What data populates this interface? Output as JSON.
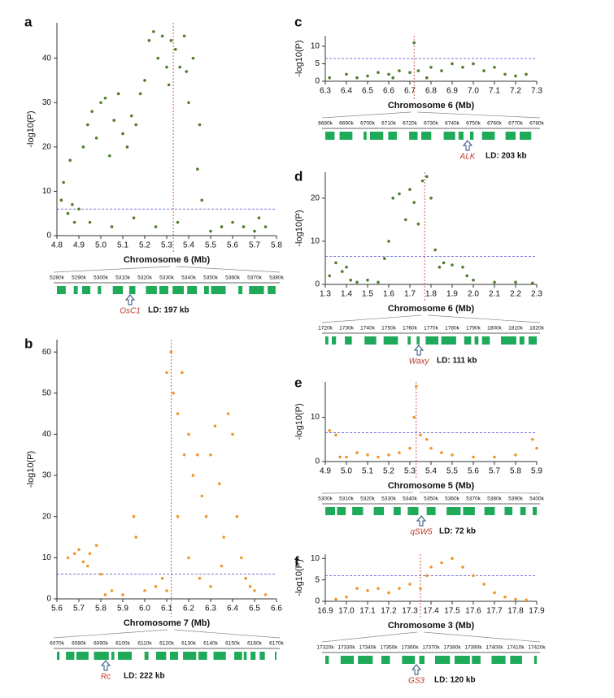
{
  "chart_data": [
    {
      "type": "scatter",
      "panel": "a",
      "color": "#4f7d2b",
      "xlabel": "Chromosome 6 (Mb)",
      "ylabel": "-log10(P)",
      "xlim": [
        4.8,
        5.8
      ],
      "xticks": [
        4.8,
        4.9,
        {
          "value": 5,
          "label": "5.0"
        },
        5.1,
        5.2,
        5.3,
        5.4,
        5.5,
        5.6,
        5.7,
        5.8
      ],
      "ylim": [
        0,
        48
      ],
      "yticks": [
        0,
        10,
        20,
        30,
        40
      ],
      "hline": 6,
      "vline": 5.33,
      "x": [
        4.82,
        4.83,
        4.85,
        4.86,
        4.88,
        4.9,
        4.92,
        4.94,
        4.96,
        4.98,
        5.0,
        5.02,
        5.04,
        5.06,
        5.08,
        5.1,
        5.12,
        5.14,
        5.16,
        5.18,
        5.2,
        5.22,
        5.24,
        5.26,
        5.28,
        5.3,
        5.32,
        5.34,
        5.36,
        5.38,
        5.4,
        5.42,
        5.44,
        5.45,
        5.46,
        4.95,
        5.05,
        5.15,
        5.25,
        5.35,
        5.5,
        5.55,
        5.6,
        5.65,
        5.7,
        5.72,
        5.75,
        4.87,
        5.31,
        5.39
      ],
      "y": [
        8,
        12,
        5,
        17,
        3,
        6,
        20,
        25,
        28,
        22,
        30,
        31,
        18,
        26,
        32,
        23,
        20,
        27,
        25,
        32,
        35,
        44,
        46,
        40,
        45,
        38,
        44,
        42,
        38,
        45,
        30,
        40,
        15,
        25,
        8,
        3,
        2,
        4,
        2,
        3,
        1,
        2,
        3,
        2,
        1,
        4,
        2,
        7,
        34,
        37
      ],
      "track": {
        "ticks": [
          "5280k",
          "5290k",
          "5300k",
          "5310k",
          "5320k",
          "5330k",
          "5340k",
          "5350k",
          "5360k",
          "5370k",
          "5380k"
        ],
        "gene": "OsC1",
        "ld": "LD: 197 kb"
      }
    },
    {
      "type": "scatter",
      "panel": "b",
      "color": "#f0962e",
      "xlabel": "Chromosome 7 (Mb)",
      "ylabel": "-log10(P)",
      "xlim": [
        5.6,
        6.6
      ],
      "xticks": [
        5.6,
        5.7,
        5.8,
        5.9,
        {
          "value": 6,
          "label": "6.0"
        },
        6.1,
        6.2,
        6.3,
        6.4,
        6.5,
        6.6
      ],
      "ylim": [
        0,
        63
      ],
      "yticks": [
        0,
        10,
        20,
        30,
        40,
        50,
        60
      ],
      "hline": 6,
      "vline": 6.12,
      "x": [
        5.65,
        5.68,
        5.7,
        5.72,
        5.75,
        5.78,
        5.8,
        5.82,
        5.85,
        5.9,
        5.95,
        5.96,
        6.0,
        6.05,
        6.08,
        6.1,
        6.12,
        6.13,
        6.15,
        6.17,
        6.2,
        6.22,
        6.24,
        6.26,
        6.28,
        6.3,
        6.32,
        6.34,
        6.36,
        6.38,
        6.4,
        6.42,
        6.44,
        6.46,
        6.48,
        6.5,
        6.55,
        6.2,
        6.25,
        6.3,
        6.35,
        6.1,
        6.15,
        6.18,
        5.74
      ],
      "y": [
        10,
        11,
        12,
        9,
        11,
        13,
        6,
        1,
        2,
        1,
        20,
        15,
        2,
        3,
        5,
        55,
        60,
        50,
        45,
        55,
        40,
        30,
        35,
        25,
        20,
        35,
        42,
        28,
        15,
        45,
        40,
        20,
        10,
        5,
        3,
        2,
        1,
        10,
        5,
        3,
        8,
        2,
        20,
        35,
        8
      ],
      "track": {
        "ticks": [
          "6070k",
          "6080k",
          "6090k",
          "6100k",
          "6110k",
          "6120k",
          "6130k",
          "6140k",
          "6150k",
          "6160k",
          "6170k"
        ],
        "gene": "Rc",
        "ld": "LD: 222 kb"
      }
    },
    {
      "type": "scatter",
      "panel": "c",
      "color": "#4f7d2b",
      "xlabel": "Chromosome 6 (Mb)",
      "ylabel": "-log10(P)",
      "xlim": [
        6.3,
        7.3
      ],
      "xticks": [
        6.3,
        6.4,
        6.5,
        6.6,
        6.7,
        6.8,
        6.9,
        {
          "value": 7,
          "label": "7.0"
        },
        7.1,
        7.2,
        7.3
      ],
      "ylim": [
        0,
        13
      ],
      "yticks": [
        0,
        5,
        10
      ],
      "hline": 6.5,
      "vline": 6.72,
      "x": [
        6.32,
        6.4,
        6.5,
        6.6,
        6.65,
        6.7,
        6.72,
        6.74,
        6.78,
        6.8,
        6.85,
        6.9,
        6.95,
        7.0,
        7.05,
        7.1,
        7.15,
        7.2,
        7.25,
        6.45,
        6.55,
        6.62
      ],
      "y": [
        1,
        2,
        1.5,
        2,
        3,
        2.5,
        11,
        3,
        1,
        4,
        3,
        5,
        4,
        5,
        3,
        4,
        2,
        1.5,
        2,
        1,
        2.5,
        1
      ],
      "track": {
        "ticks": [
          "6680k",
          "6690k",
          "6700k",
          "6710k",
          "6720k",
          "6730k",
          "6740k",
          "6750k",
          "6760k",
          "6770k",
          "6780k"
        ],
        "gene": "ALK",
        "ld": "LD: 203 kb"
      }
    },
    {
      "type": "scatter",
      "panel": "d",
      "color": "#4f7d2b",
      "xlabel": "Chromosome 6 (Mb)",
      "ylabel": "-log10(P)",
      "xlim": [
        1.3,
        2.3
      ],
      "xticks": [
        1.3,
        1.4,
        1.5,
        1.6,
        1.7,
        1.8,
        1.9,
        {
          "value": 2,
          "label": "2.0"
        },
        2.1,
        2.2,
        2.3
      ],
      "ylim": [
        0,
        26
      ],
      "yticks": [
        0,
        10,
        20
      ],
      "hline": 6.5,
      "vline": 1.77,
      "x": [
        1.32,
        1.35,
        1.38,
        1.4,
        1.42,
        1.45,
        1.5,
        1.55,
        1.6,
        1.62,
        1.65,
        1.68,
        1.7,
        1.72,
        1.74,
        1.76,
        1.78,
        1.8,
        1.82,
        1.84,
        1.86,
        1.9,
        1.95,
        1.97,
        2.0,
        2.1,
        2.2,
        2.28,
        1.58
      ],
      "y": [
        2,
        5,
        3,
        4,
        1,
        0.5,
        1,
        0.5,
        10,
        20,
        21,
        15,
        22,
        19,
        14,
        24,
        25,
        20,
        8,
        4,
        5,
        4.5,
        4,
        2,
        1,
        0.5,
        0.5,
        0.3,
        6
      ],
      "track": {
        "ticks": [
          "1720k",
          "1730k",
          "1740k",
          "1750k",
          "1760k",
          "1770k",
          "1780k",
          "1790k",
          "1800k",
          "1810k",
          "1820k"
        ],
        "gene": "Waxy",
        "ld": "LD: 111 kb"
      }
    },
    {
      "type": "scatter",
      "panel": "e",
      "color": "#f0962e",
      "xlabel": "Chromosome 5 (Mb)",
      "ylabel": "-log10(P)",
      "xlim": [
        4.9,
        5.9
      ],
      "xticks": [
        4.9,
        {
          "value": 5,
          "label": "5.0"
        },
        5.1,
        5.2,
        5.3,
        5.4,
        5.5,
        5.6,
        5.7,
        5.8,
        5.9
      ],
      "ylim": [
        0,
        18
      ],
      "yticks": [
        0,
        10
      ],
      "hline": 6.5,
      "vline": 5.33,
      "x": [
        4.92,
        4.95,
        4.97,
        5.0,
        5.05,
        5.1,
        5.15,
        5.2,
        5.25,
        5.3,
        5.32,
        5.33,
        5.35,
        5.38,
        5.4,
        5.45,
        5.5,
        5.6,
        5.7,
        5.8,
        5.88,
        5.9
      ],
      "y": [
        7,
        6,
        1,
        1,
        2,
        1.5,
        1,
        1.5,
        2,
        3,
        10,
        17,
        6,
        5,
        3,
        2,
        1.5,
        1,
        1,
        1.5,
        5,
        3
      ],
      "track": {
        "ticks": [
          "5300k",
          "5310k",
          "5320k",
          "5330k",
          "5340k",
          "5350k",
          "5360k",
          "5370k",
          "5380k",
          "5390k",
          "5400k"
        ],
        "gene": "qSW5",
        "ld": "LD: 72 kb"
      }
    },
    {
      "type": "scatter",
      "panel": "f",
      "color": "#f0962e",
      "xlabel": "Chromosome 3 (Mb)",
      "ylabel": "-log10(P)",
      "xlim": [
        16.9,
        17.9
      ],
      "xticks": [
        16.9,
        {
          "value": 17,
          "label": "17.0"
        },
        17.1,
        17.2,
        17.3,
        17.4,
        17.5,
        17.6,
        17.7,
        17.8,
        17.9
      ],
      "ylim": [
        0,
        11
      ],
      "yticks": [
        0,
        5,
        10
      ],
      "hline": 6,
      "vline": 17.35,
      "x": [
        16.95,
        17.0,
        17.05,
        17.1,
        17.15,
        17.2,
        17.25,
        17.3,
        17.35,
        17.38,
        17.4,
        17.45,
        17.5,
        17.55,
        17.6,
        17.65,
        17.7,
        17.75,
        17.8,
        17.85
      ],
      "y": [
        0.5,
        1,
        3,
        2.5,
        3,
        2,
        3,
        4,
        3,
        6,
        8,
        9,
        10,
        8,
        6,
        4,
        2,
        1,
        0.5,
        0.3
      ],
      "track": {
        "ticks": [
          "17320k",
          "17330k",
          "17340k",
          "17350k",
          "17360k",
          "17370k",
          "17380k",
          "17390k",
          "17400k",
          "17410k",
          "17420k"
        ],
        "gene": "GS3",
        "ld": "LD: 120 kb"
      }
    }
  ]
}
